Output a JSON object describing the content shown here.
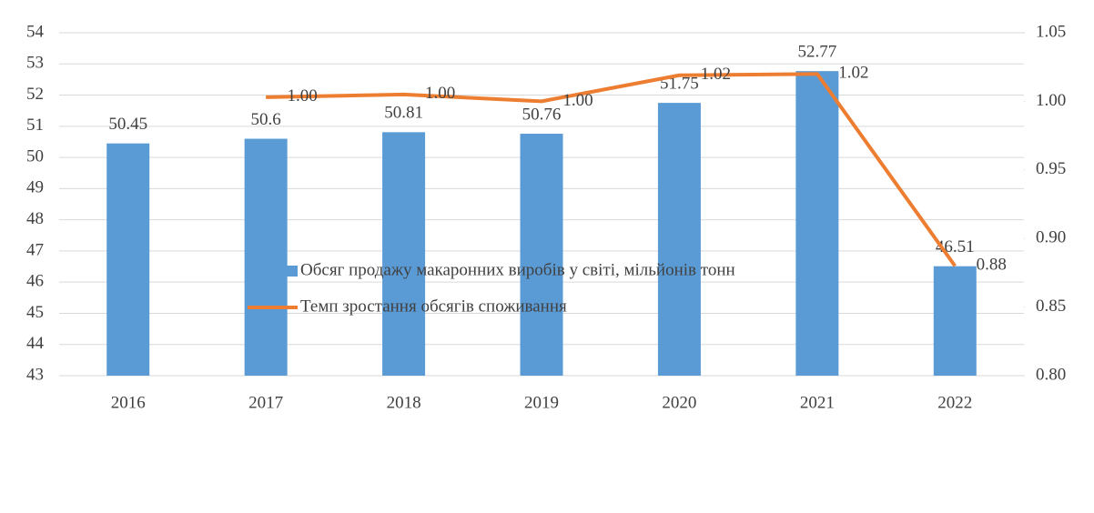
{
  "chart_data": {
    "type": "bar",
    "categories": [
      "2016",
      "2017",
      "2018",
      "2019",
      "2020",
      "2021",
      "2022"
    ],
    "series": [
      {
        "name": "Обсяг продажу макаронних виробів у світі, мільйонів тонн",
        "type": "bar",
        "color": "#5b9bd5",
        "values": [
          50.45,
          50.6,
          50.81,
          50.76,
          51.75,
          52.77,
          46.51
        ]
      },
      {
        "name": "Темп зростання обсягів споживання",
        "type": "line",
        "axis": "y2",
        "color": "#ed7d31",
        "values": [
          null,
          1.003,
          1.005,
          1.0,
          1.019,
          1.02,
          0.88
        ],
        "value_labels": [
          null,
          "1.00",
          "1.00",
          "1.00",
          "1.02",
          "1.02",
          "0.88"
        ]
      }
    ],
    "ylim": [
      43,
      54
    ],
    "yticks": [
      43,
      44,
      45,
      46,
      47,
      48,
      49,
      50,
      51,
      52,
      53,
      54
    ],
    "y2lim": [
      0.8,
      1.05
    ],
    "y2ticks": [
      {
        "value": 0.8,
        "label": "0.80"
      },
      {
        "value": 0.85,
        "label": "0.85"
      },
      {
        "value": 0.9,
        "label": "0.90"
      },
      {
        "value": 0.95,
        "label": "0.95"
      },
      {
        "value": 1.0,
        "label": "1.00"
      },
      {
        "value": 1.05,
        "label": "1.05"
      }
    ],
    "grid": true,
    "legend": "bottom"
  }
}
